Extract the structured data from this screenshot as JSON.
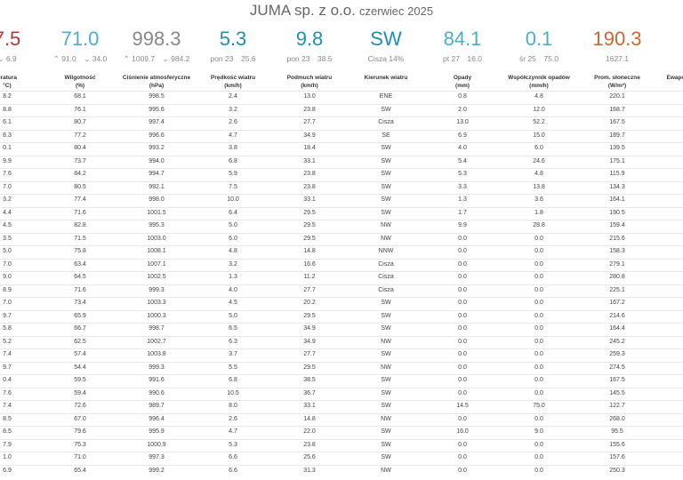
{
  "header": {
    "company": "JUMA sp. z o.o.",
    "period": "czerwiec 2025"
  },
  "summary": [
    {
      "value": "7.5",
      "color": "#b23a3a",
      "sub1": "6.9",
      "sub1_arrow": "⌄",
      "sub2": ""
    },
    {
      "value": "71.0",
      "color": "#4ab0c4",
      "sub1": "91.0",
      "sub1_arrow": "⌃",
      "sub2": "34.0",
      "sub2_arrow": "⌄"
    },
    {
      "value": "998.3",
      "color": "#888888",
      "sub1": "1009.7",
      "sub1_arrow": "⌃",
      "sub2": "984.2",
      "sub2_arrow": "⌄"
    },
    {
      "value": "5.3",
      "color": "#1f8fb0",
      "sub1": "pon 23",
      "sub2": "25.6"
    },
    {
      "value": "9.8",
      "color": "#1f8fb0",
      "sub1": "pon 23",
      "sub2": "38.5"
    },
    {
      "value": "SW",
      "color": "#1f8fb0",
      "sub1": "Cisza 14%",
      "sub2": ""
    },
    {
      "value": "84.1",
      "color": "#4ab0c4",
      "sub1": "pt 27",
      "sub2": "16.0"
    },
    {
      "value": "0.1",
      "color": "#4ab0c4",
      "sub1": "śr 25",
      "sub2": "75.0"
    },
    {
      "value": "190.3",
      "color": "#cc6633",
      "sub1": "1627.1",
      "sub2": ""
    }
  ],
  "columns": [
    {
      "l1": "eratura",
      "l2": "°C)"
    },
    {
      "l1": "Wilgotność",
      "l2": "(%)"
    },
    {
      "l1": "Ciśnienie atmosferyczne",
      "l2": "(hPa)"
    },
    {
      "l1": "Prędkość wiatru",
      "l2": "(km/h)"
    },
    {
      "l1": "Podmuch wiatru",
      "l2": "(km/h)"
    },
    {
      "l1": "Kierunek wiatru",
      "l2": ""
    },
    {
      "l1": "Opady",
      "l2": "(mm)"
    },
    {
      "l1": "Współczynnik opadów",
      "l2": "(mm/h)"
    },
    {
      "l1": "Prom. słoneczne",
      "l2": "(W/m²)"
    },
    {
      "l1": "Ewapo",
      "l2": ""
    }
  ],
  "rows": [
    [
      "8.2",
      "68.1",
      "998.5",
      "2.4",
      "13.0",
      "ENE",
      "0.8",
      "4.8",
      "220.1"
    ],
    [
      "8.8",
      "76.1",
      "995.6",
      "3.2",
      "23.8",
      "SW",
      "2.0",
      "12.0",
      "168.7"
    ],
    [
      "6.1",
      "80.7",
      "997.4",
      "2.6",
      "27.7",
      "Cisza",
      "13.0",
      "52.2",
      "167.5"
    ],
    [
      "8.3",
      "77.2",
      "996.6",
      "4.7",
      "34.9",
      "SE",
      "6.9",
      "15.0",
      "189.7"
    ],
    [
      "0.1",
      "80.4",
      "993.2",
      "3.8",
      "18.4",
      "SW",
      "4.0",
      "6.0",
      "139.5"
    ],
    [
      "9.9",
      "73.7",
      "994.0",
      "6.8",
      "33.1",
      "SW",
      "5.4",
      "24.6",
      "175.1"
    ],
    [
      "7.6",
      "84.2",
      "994.7",
      "5.9",
      "23.8",
      "SW",
      "5.3",
      "4.8",
      "115.9"
    ],
    [
      "7.0",
      "80.5",
      "992.1",
      "7.5",
      "23.8",
      "SW",
      "3.3",
      "13.8",
      "134.3"
    ],
    [
      "3.2",
      "77.4",
      "998.0",
      "10.0",
      "33.1",
      "SW",
      "1.3",
      "3.6",
      "164.1"
    ],
    [
      "4.4",
      "71.6",
      "1001.5",
      "6.4",
      "29.5",
      "SW",
      "1.7",
      "1.8",
      "190.5"
    ],
    [
      "4.5",
      "82.8",
      "995.3",
      "5.0",
      "29.5",
      "NW",
      "9.9",
      "28.8",
      "159.4"
    ],
    [
      "3.5",
      "71.5",
      "1003.0",
      "6.0",
      "29.5",
      "NW",
      "0.0",
      "0.0",
      "215.6"
    ],
    [
      "5.0",
      "75.8",
      "1008.1",
      "4.8",
      "14.8",
      "NNW",
      "0.0",
      "0.0",
      "158.3"
    ],
    [
      "7.0",
      "63.4",
      "1007.1",
      "3.2",
      "16.6",
      "Cisza",
      "0.0",
      "0.0",
      "279.1"
    ],
    [
      "9.0",
      "64.5",
      "1002.5",
      "1.3",
      "11.2",
      "Cisza",
      "0.0",
      "0.0",
      "280.8"
    ],
    [
      "8.9",
      "71.6",
      "999.3",
      "4.0",
      "27.7",
      "Cisza",
      "0.0",
      "0.0",
      "225.1"
    ],
    [
      "7.0",
      "73.4",
      "1003.3",
      "4.5",
      "20.2",
      "SW",
      "0.0",
      "0.0",
      "167.2"
    ],
    [
      "9.7",
      "65.9",
      "1000.3",
      "5.0",
      "29.5",
      "SW",
      "0.0",
      "0.0",
      "214.6"
    ],
    [
      "5.8",
      "66.7",
      "998.7",
      "6.5",
      "34.9",
      "SW",
      "0.0",
      "0.0",
      "164.4"
    ],
    [
      "5.2",
      "62.5",
      "1002.7",
      "6.3",
      "34.9",
      "NW",
      "0.0",
      "0.0",
      "245.2"
    ],
    [
      "7.4",
      "57.4",
      "1003.8",
      "3.7",
      "27.7",
      "SW",
      "0.0",
      "0.0",
      "259.3"
    ],
    [
      "9.7",
      "54.4",
      "999.3",
      "5.5",
      "29.5",
      "NW",
      "0.0",
      "0.0",
      "274.5"
    ],
    [
      "0.4",
      "59.5",
      "991.6",
      "6.8",
      "38.5",
      "SW",
      "0.0",
      "0.0",
      "167.5"
    ],
    [
      "7.6",
      "59.4",
      "990.6",
      "10.5",
      "36.7",
      "SW",
      "0.0",
      "0.0",
      "145.5"
    ],
    [
      "7.4",
      "72.6",
      "989.7",
      "8.0",
      "33.1",
      "SW",
      "14.5",
      "75.0",
      "122.7"
    ],
    [
      "8.5",
      "67.0",
      "996.4",
      "2.6",
      "14.8",
      "NW",
      "0.0",
      "0.0",
      "268.0"
    ],
    [
      "8.5",
      "79.6",
      "995.9",
      "4.7",
      "22.0",
      "SW",
      "16.0",
      "9.0",
      "95.5"
    ],
    [
      "7.9",
      "75.3",
      "1000.9",
      "5.3",
      "23.8",
      "SW",
      "0.0",
      "0.0",
      "155.6"
    ],
    [
      "1.0",
      "71.0",
      "997.3",
      "6.6",
      "25.6",
      "SW",
      "0.0",
      "0.0",
      "157.6"
    ],
    [
      "6.9",
      "65.4",
      "999.2",
      "6.6",
      "31.3",
      "NW",
      "0.0",
      "0.0",
      "250.3"
    ]
  ]
}
